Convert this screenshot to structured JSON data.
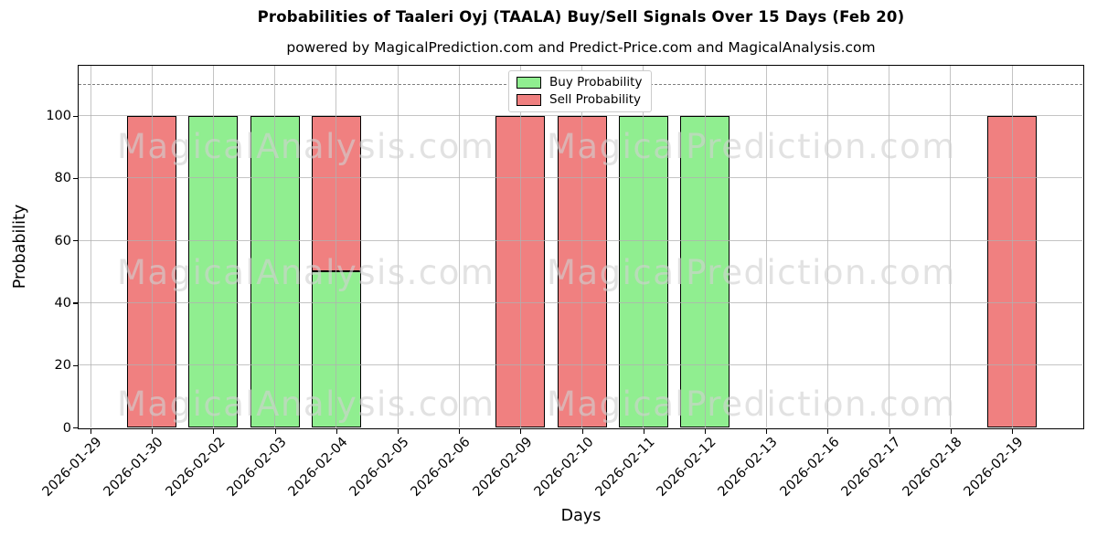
{
  "header": {
    "title": "Probabilities of Taaleri Oyj (TAALA) Buy/Sell Signals Over 15 Days (Feb 20)",
    "subtitle": "powered by MagicalPrediction.com and Predict-Price.com and MagicalAnalysis.com"
  },
  "watermarks": {
    "left_text": "MagicalAnalysis.com",
    "right_text": "MagicalPrediction.com"
  },
  "legend": {
    "items": [
      {
        "label": "Buy Probability",
        "color": "#90ee90"
      },
      {
        "label": "Sell Probability",
        "color": "#f08080"
      }
    ]
  },
  "chart_data": {
    "type": "bar",
    "stacked": true,
    "title": "Probabilities of Taaleri Oyj (TAALA) Buy/Sell Signals Over 15 Days (Feb 20)",
    "subtitle": "powered by MagicalPrediction.com and Predict-Price.com and MagicalAnalysis.com",
    "xlabel": "Days",
    "ylabel": "Probability",
    "categories": [
      "2026-01-29",
      "2026-01-30",
      "2026-02-02",
      "2026-02-03",
      "2026-02-04",
      "2026-02-05",
      "2026-02-06",
      "2026-02-09",
      "2026-02-10",
      "2026-02-11",
      "2026-02-12",
      "2026-02-13",
      "2026-02-16",
      "2026-02-17",
      "2026-02-18",
      "2026-02-19"
    ],
    "series": [
      {
        "name": "Buy Probability",
        "color": "#90ee90",
        "values": [
          0,
          0,
          100,
          100,
          50,
          0,
          0,
          0,
          0,
          100,
          100,
          0,
          0,
          0,
          0,
          0
        ]
      },
      {
        "name": "Sell Probability",
        "color": "#f08080",
        "values": [
          0,
          100,
          0,
          0,
          50,
          0,
          0,
          100,
          100,
          0,
          0,
          0,
          0,
          0,
          0,
          100
        ]
      }
    ],
    "yticks": [
      0,
      20,
      40,
      60,
      80,
      100
    ],
    "ylim": [
      0,
      116
    ],
    "threshold_line_y": 110,
    "grid": true,
    "legend_position": "upper center"
  }
}
